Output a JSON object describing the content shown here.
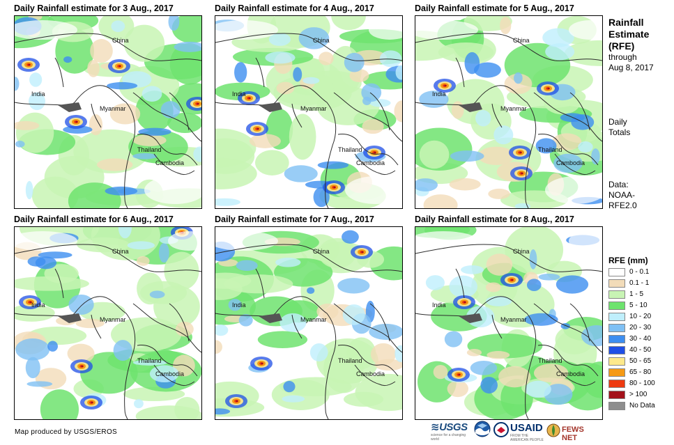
{
  "panels": [
    {
      "title": "Daily Rainfall estimate for 3 Aug., 2017"
    },
    {
      "title": "Daily Rainfall estimate for 4 Aug., 2017"
    },
    {
      "title": "Daily Rainfall estimate for 5 Aug., 2017"
    },
    {
      "title": "Daily Rainfall estimate for 6 Aug., 2017"
    },
    {
      "title": "Daily Rainfall estimate for 7 Aug., 2017"
    },
    {
      "title": "Daily Rainfall estimate for 8 Aug., 2017"
    }
  ],
  "place_labels": {
    "china": "China",
    "india": "India",
    "myanmar": "Myanmar",
    "thailand": "Thailand",
    "cambodia": "Cambodia"
  },
  "sidebar": {
    "title_line1": "Rainfall",
    "title_line2": "Estimate",
    "title_line3": "(RFE)",
    "through": "through",
    "date": "Aug 8, 2017",
    "daily": "Daily",
    "totals": "Totals",
    "data_label": "Data:",
    "data_source_line1": "NOAA-",
    "data_source_line2": "RFE2.0"
  },
  "legend": {
    "title": "RFE (mm)",
    "items": [
      {
        "label": "0 - 0.1",
        "color": "#ffffff"
      },
      {
        "label": "0.1 - 1",
        "color": "#f2dcb9"
      },
      {
        "label": "1 - 5",
        "color": "#c8f4b4"
      },
      {
        "label": "5 - 10",
        "color": "#6ee36e"
      },
      {
        "label": "10 - 20",
        "color": "#bfeffc"
      },
      {
        "label": "20 - 30",
        "color": "#7fc0f4"
      },
      {
        "label": "30 - 40",
        "color": "#3d8ef0"
      },
      {
        "label": "40 - 50",
        "color": "#1f4fe6"
      },
      {
        "label": "50 - 65",
        "color": "#fde98b"
      },
      {
        "label": "65 - 80",
        "color": "#f59a16"
      },
      {
        "label": "80 - 100",
        "color": "#ee3a10"
      },
      {
        "label": "> 100",
        "color": "#a3121b"
      },
      {
        "label": "No Data",
        "color": "#8e8e8e"
      }
    ]
  },
  "footer": {
    "credit": "Map produced by USGS/EROS",
    "usgs": "≋USGS",
    "usgs_sub": "science for a changing world",
    "noaa": "NOAA",
    "usaid": "USAID",
    "usaid_sub": "FROM THE AMERICAN PEOPLE",
    "fews": "FEWS NET"
  }
}
